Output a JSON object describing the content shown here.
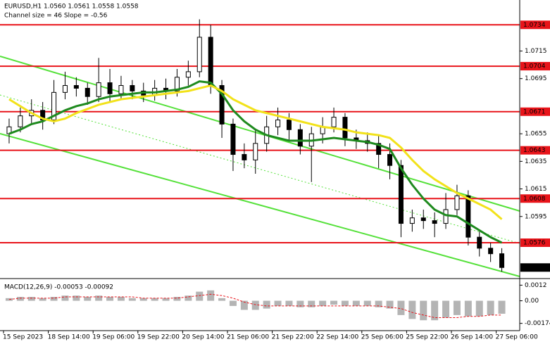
{
  "chart_data": {
    "type": "candlestick",
    "title": "EURUSD,H1  1.0560 1.0561 1.0558 1.0558",
    "subtitle": "Channel size = 46 Slope = -0.56",
    "categories": [
      "15 Sep 2023",
      null,
      null,
      null,
      "18 Sep 14:00",
      null,
      null,
      null,
      "19 Sep 06:00",
      null,
      null,
      null,
      "19 Sep 22:00",
      null,
      null,
      null,
      "20 Sep 14:00",
      null,
      null,
      null,
      "21 Sep 06:00",
      null,
      null,
      null,
      "21 Sep 22:00",
      null,
      null,
      null,
      "22 Sep 14:00",
      null,
      null,
      null,
      "25 Sep 06:00",
      null,
      null,
      null,
      "25 Sep 22:00",
      null,
      null,
      null,
      "26 Sep 14:00",
      null,
      null,
      null,
      "27 Sep 06:00"
    ],
    "open": [
      1.0655,
      1.066,
      1.0668,
      1.0672,
      1.0665,
      1.0685,
      1.069,
      1.0688,
      1.0682,
      1.0692,
      1.0684,
      1.069,
      1.0686,
      1.0683,
      1.0688,
      1.0686,
      1.0696,
      1.07,
      1.0725,
      1.069,
      1.0662,
      1.064,
      1.0636,
      1.0648,
      1.066,
      1.0665,
      1.0658,
      1.0646,
      1.0655,
      1.066,
      1.0667,
      1.0652,
      1.065,
      1.0648,
      1.064,
      1.0632,
      1.059,
      1.0594,
      1.0592,
      1.059,
      1.06,
      1.061,
      1.058,
      1.0572,
      1.0568
    ],
    "high": [
      1.0666,
      1.0674,
      1.068,
      1.0678,
      1.0694,
      1.07,
      1.0696,
      1.0692,
      1.071,
      1.0702,
      1.0697,
      1.0694,
      1.0692,
      1.0694,
      1.0695,
      1.0702,
      1.0708,
      1.0738,
      1.0734,
      1.0694,
      1.0666,
      1.0648,
      1.0658,
      1.0668,
      1.0674,
      1.067,
      1.0662,
      1.066,
      1.0667,
      1.0674,
      1.067,
      1.0658,
      1.0656,
      1.0654,
      1.0648,
      1.0636,
      1.06,
      1.06,
      1.0598,
      1.0612,
      1.0618,
      1.0614,
      1.0584,
      1.0576,
      1.0572
    ],
    "low": [
      1.0648,
      1.0656,
      1.0662,
      1.0658,
      1.0662,
      1.068,
      1.0682,
      1.0676,
      1.0678,
      1.0678,
      1.068,
      1.068,
      1.0678,
      1.0679,
      1.068,
      1.0682,
      1.069,
      1.0696,
      1.0684,
      1.0652,
      1.0628,
      1.063,
      1.0626,
      1.0642,
      1.0654,
      1.065,
      1.064,
      1.062,
      1.0648,
      1.0656,
      1.0646,
      1.0644,
      1.0642,
      1.063,
      1.0622,
      1.058,
      1.0584,
      1.0586,
      1.058,
      1.0586,
      1.0596,
      1.0574,
      1.0566,
      1.0562,
      1.0555
    ],
    "close": [
      1.066,
      1.0668,
      1.0672,
      1.0665,
      1.0685,
      1.069,
      1.0688,
      1.0682,
      1.0692,
      1.0684,
      1.069,
      1.0686,
      1.0683,
      1.0688,
      1.0686,
      1.0696,
      1.07,
      1.0725,
      1.069,
      1.0662,
      1.064,
      1.0636,
      1.0648,
      1.066,
      1.0665,
      1.0658,
      1.0646,
      1.0655,
      1.066,
      1.0667,
      1.0652,
      1.065,
      1.0648,
      1.064,
      1.0632,
      1.059,
      1.0594,
      1.0592,
      1.059,
      1.06,
      1.061,
      1.058,
      1.0572,
      1.0568,
      1.0558
    ],
    "lines": [
      {
        "color": "#1e8a1e",
        "values": [
          1.0655,
          1.0658,
          1.0662,
          1.0664,
          1.0668,
          1.0672,
          1.0675,
          1.0677,
          1.068,
          1.0682,
          1.0683,
          1.0684,
          1.0685,
          1.0685,
          1.0686,
          1.0687,
          1.0689,
          1.0693,
          1.0692,
          1.0684,
          1.0672,
          1.0664,
          1.0658,
          1.0654,
          1.0652,
          1.065,
          1.065,
          1.065,
          1.0651,
          1.0652,
          1.0651,
          1.065,
          1.0649,
          1.0647,
          1.0644,
          1.063,
          1.0618,
          1.0608,
          1.06,
          1.0596,
          1.0595,
          1.059,
          1.0585,
          1.058,
          1.0576
        ]
      },
      {
        "color": "#f2e21a",
        "values": [
          1.068,
          1.0675,
          1.067,
          1.0666,
          1.0664,
          1.0666,
          1.067,
          1.0673,
          1.0676,
          1.0678,
          1.068,
          1.0681,
          1.0682,
          1.0683,
          1.0684,
          1.0685,
          1.0686,
          1.0688,
          1.069,
          1.0686,
          1.068,
          1.0676,
          1.0672,
          1.067,
          1.0668,
          1.0666,
          1.0664,
          1.0662,
          1.066,
          1.0659,
          1.0658,
          1.0656,
          1.0655,
          1.0654,
          1.0652,
          1.0645,
          1.0636,
          1.0628,
          1.0622,
          1.0617,
          1.0612,
          1.0608,
          1.0604,
          1.06,
          1.0593
        ]
      }
    ],
    "levels": [
      1.0734,
      1.0704,
      1.0671,
      1.0643,
      1.0608,
      1.0576
    ],
    "level_color": "#e8141a",
    "last_price": 1.0558,
    "ylim": [
      1.0551,
      1.0752
    ],
    "yticks": [
      1.0715,
      1.0695,
      1.0655,
      1.0635,
      1.0615,
      1.0595
    ],
    "macd": {
      "title": "MACD(12,26,9) -0.00053 -0.00092",
      "ylim": [
        -0.0023,
        0.0016
      ],
      "yticks": [
        0.0012,
        {
          "value": 0,
          "label": "0.00"
        },
        -0.00174
      ],
      "histogram_color": "#b4b4b4",
      "signal_color": "#e8141a",
      "histogram": [
        0.0002,
        0.0003,
        0.0003,
        0.0002,
        0.0003,
        0.0004,
        0.0004,
        0.0003,
        0.0004,
        0.0003,
        0.0003,
        0.0002,
        0.0002,
        0.0002,
        0.0002,
        0.0003,
        0.0004,
        0.0007,
        0.0008,
        0.0002,
        -0.0004,
        -0.0007,
        -0.0007,
        -0.0006,
        -0.0004,
        -0.0004,
        -0.0005,
        -0.0005,
        -0.0004,
        -0.0003,
        -0.0004,
        -0.0004,
        -0.0004,
        -0.0005,
        -0.0006,
        -0.0011,
        -0.0014,
        -0.0015,
        -0.0015,
        -0.0013,
        -0.0011,
        -0.0012,
        -0.0012,
        -0.0011,
        -0.001
      ],
      "signal": [
        0.0001,
        0.0002,
        0.0002,
        0.0002,
        0.0002,
        0.0003,
        0.0003,
        0.0003,
        0.0003,
        0.0003,
        0.0003,
        0.0003,
        0.0002,
        0.0002,
        0.0002,
        0.0002,
        0.0003,
        0.0004,
        0.0005,
        0.0004,
        0.0002,
        -0.0001,
        -0.0003,
        -0.0004,
        -0.0004,
        -0.0004,
        -0.0004,
        -0.0004,
        -0.0004,
        -0.0004,
        -0.0004,
        -0.0004,
        -0.0004,
        -0.0004,
        -0.0005,
        -0.0006,
        -0.0009,
        -0.0011,
        -0.0013,
        -0.0013,
        -0.0013,
        -0.0012,
        -0.0012,
        -0.0011,
        -0.0011
      ]
    }
  }
}
